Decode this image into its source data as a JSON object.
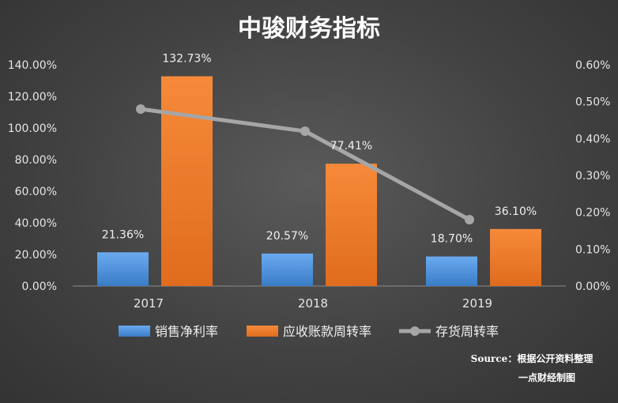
{
  "chart_data": {
    "type": "bar",
    "title": "中骏财务指标",
    "categories": [
      "2017",
      "2018",
      "2019"
    ],
    "series": [
      {
        "name": "销售净利率",
        "type": "bar",
        "axis": "left",
        "values": [
          21.36,
          20.57,
          18.7
        ],
        "labels": [
          "21.36%",
          "20.57%",
          "18.70%"
        ],
        "color": "#4f94d8"
      },
      {
        "name": "应收账款周转率",
        "type": "bar",
        "axis": "left",
        "values": [
          132.73,
          77.41,
          36.1
        ],
        "labels": [
          "132.73%",
          "77.41%",
          "36.10%"
        ],
        "color": "#ee7b2c"
      },
      {
        "name": "存货周转率",
        "type": "line",
        "axis": "right",
        "values": [
          0.48,
          0.42,
          0.18
        ],
        "color": "#a6a6a6"
      }
    ],
    "y_left": {
      "min": 0,
      "max": 140,
      "step": 20,
      "tick_labels": [
        "0.00%",
        "20.00%",
        "40.00%",
        "60.00%",
        "80.00%",
        "100.00%",
        "120.00%",
        "140.00%"
      ]
    },
    "y_right": {
      "min": 0,
      "max": 0.6,
      "step": 0.1,
      "tick_labels": [
        "0.00%",
        "0.10%",
        "0.20%",
        "0.30%",
        "0.40%",
        "0.50%",
        "0.60%"
      ]
    },
    "legend_position": "bottom",
    "grid": false,
    "source_line1": "Source：根据公开资料整理",
    "source_line2": "一点财经制图"
  }
}
